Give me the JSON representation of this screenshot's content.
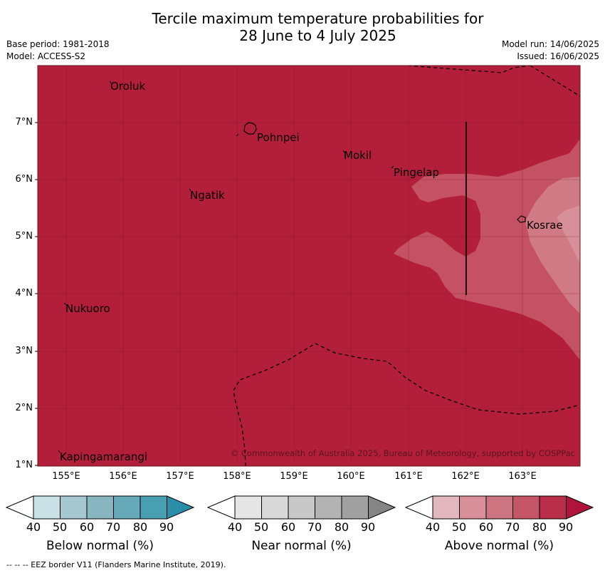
{
  "title_line1": "Tercile maximum temperature probabilities for",
  "title_line2": "28 June to 4 July 2025",
  "meta_left": {
    "line1": "Base period: 1981-2018",
    "line2": "Model: ACCESS-S2"
  },
  "meta_right": {
    "line1": "Model run: 14/06/2025",
    "line2": "Issued: 16/06/2025"
  },
  "map": {
    "lat_ticks": [
      "7°N",
      "6°N",
      "5°N",
      "4°N",
      "3°N",
      "2°N",
      "1°N"
    ],
    "lon_ticks": [
      "155°E",
      "156°E",
      "157°E",
      "158°E",
      "159°E",
      "160°E",
      "161°E",
      "162°E",
      "163°E"
    ],
    "places": [
      "Oroluk",
      "Pohnpei",
      "Mokil",
      "Pingelap",
      "Ngatik",
      "Kosrae",
      "Nukuoro",
      "Kapingamarangi"
    ],
    "copyright": "© Commonwealth of Australia 2025, Bureau of Meteorology, supported by COSPPac",
    "colors": {
      "above_80": "#b31f3a",
      "above_70": "#c45264",
      "above_60": "#d07a85",
      "grid": "#7a1a28"
    }
  },
  "colorbars": [
    {
      "label": "Below normal (%)",
      "ticks": [
        "40",
        "50",
        "60",
        "70",
        "80",
        "90"
      ],
      "colors": [
        "#ffffff",
        "#c8e0e6",
        "#a5c7cf",
        "#88b6c0",
        "#66a9b9",
        "#479fb1",
        "#2b8ea8"
      ]
    },
    {
      "label": "Near normal (%)",
      "ticks": [
        "40",
        "50",
        "60",
        "70",
        "80",
        "90"
      ],
      "colors": [
        "#ffffff",
        "#e5e5e5",
        "#d9d9d9",
        "#c8c8c8",
        "#b3b3b3",
        "#a0a0a0",
        "#858585"
      ]
    },
    {
      "label": "Above normal (%)",
      "ticks": [
        "40",
        "50",
        "60",
        "70",
        "80",
        "90"
      ],
      "colors": [
        "#ffffff",
        "#e2b8be",
        "#d7909a",
        "#cc7580",
        "#c45567",
        "#b82d47",
        "#b0143c"
      ]
    }
  ],
  "footnote": "--  --  -- EEZ border V11 (Flanders Marine Institute, 2019)."
}
